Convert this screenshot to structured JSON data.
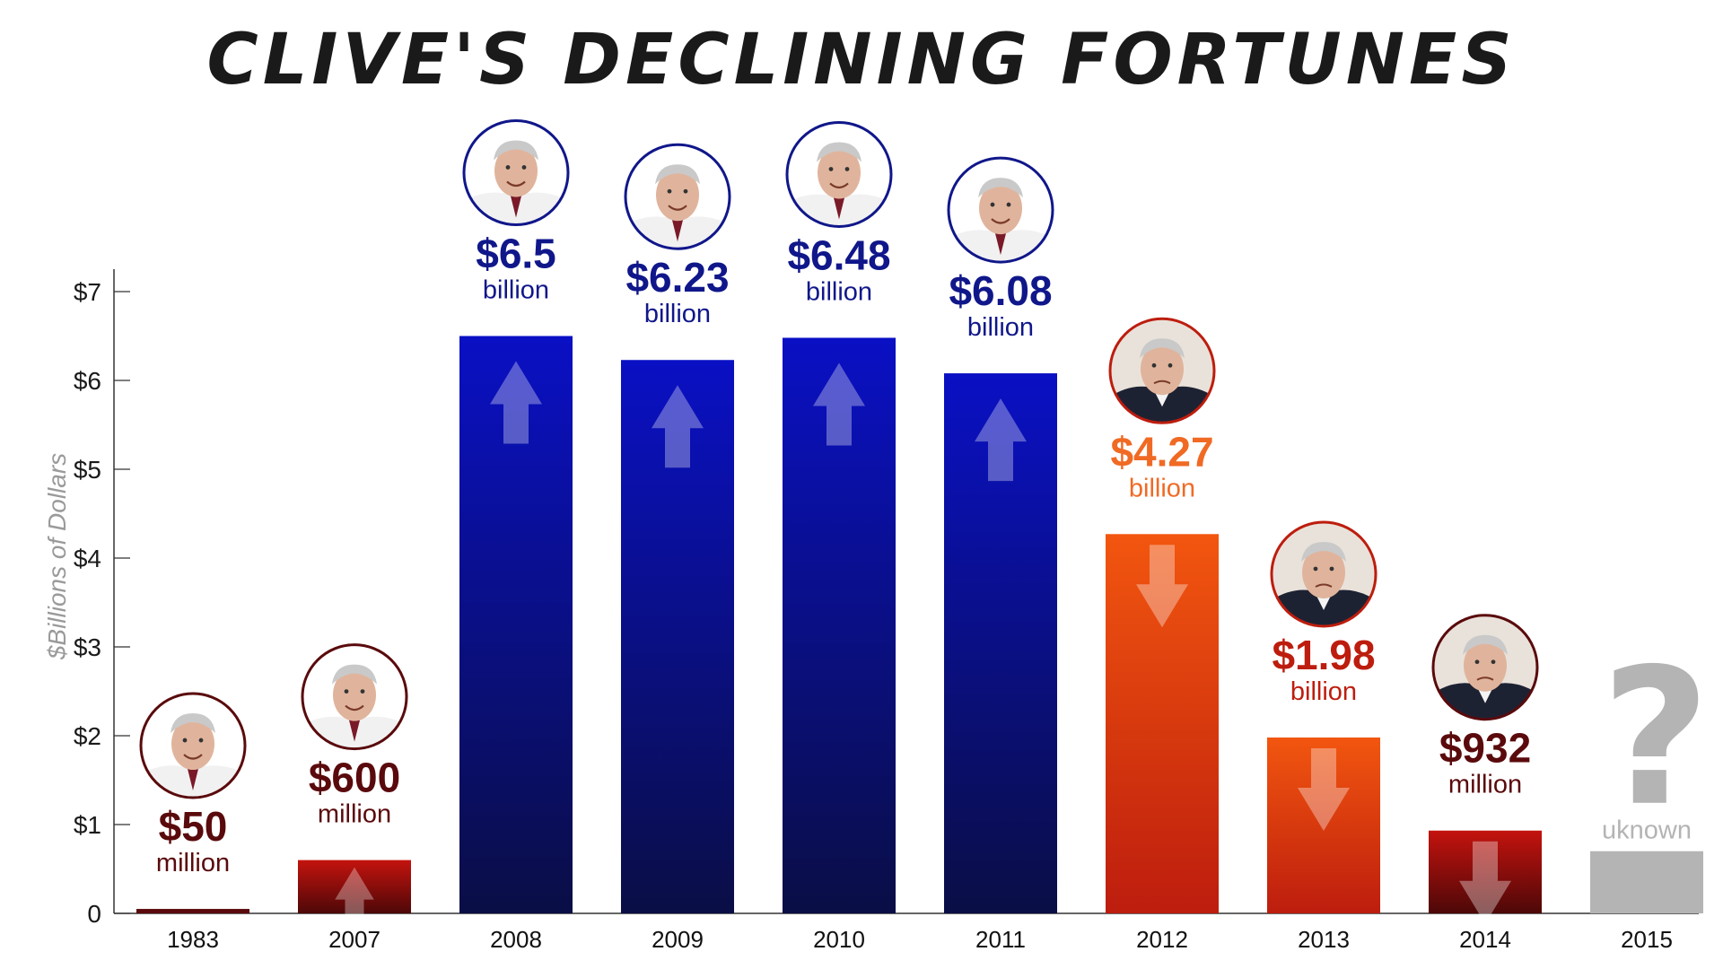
{
  "title": "CLIVE'S DECLINING FORTUNES",
  "colors": {
    "blue_top": "#0a10c4",
    "blue_bottom": "#0a0e45",
    "orange_top": "#f2560f",
    "orange_bottom": "#bd1d0e",
    "red_top": "#c4130e",
    "red_bottom": "#4d0808",
    "dark_red": "#5a0a0c",
    "navy": "#10178a",
    "orange_label": "#f06a24",
    "grey": "#b4b4b4",
    "axis": "#333333"
  },
  "chart_data": {
    "type": "bar",
    "title": "CLIVE'S DECLINING FORTUNES",
    "xlabel": "",
    "ylabel": "$Billions of Dollars",
    "ylim": [
      0,
      7.3
    ],
    "yticks": [
      0,
      1,
      2,
      3,
      4,
      5,
      6,
      7
    ],
    "ytick_labels": [
      "0",
      "$1",
      "$2",
      "$3",
      "$4",
      "$5",
      "$6",
      "$7"
    ],
    "categories": [
      "1983",
      "2007",
      "2008",
      "2009",
      "2010",
      "2011",
      "2012",
      "2013",
      "2014",
      "2015"
    ],
    "values": [
      0.05,
      0.6,
      6.5,
      6.23,
      6.48,
      6.08,
      4.27,
      1.98,
      0.932,
      null
    ],
    "value_labels": [
      {
        "amount": "$50",
        "unit": "million",
        "color": "dark_red",
        "arrow": "none",
        "face": "happy"
      },
      {
        "amount": "$600",
        "unit": "million",
        "color": "dark_red",
        "arrow": "up",
        "face": "happy"
      },
      {
        "amount": "$6.5",
        "unit": "billion",
        "color": "navy",
        "arrow": "up",
        "face": "happy"
      },
      {
        "amount": "$6.23",
        "unit": "billion",
        "color": "navy",
        "arrow": "up",
        "face": "happy"
      },
      {
        "amount": "$6.48",
        "unit": "billion",
        "color": "navy",
        "arrow": "up",
        "face": "happy"
      },
      {
        "amount": "$6.08",
        "unit": "billion",
        "color": "navy",
        "arrow": "up",
        "face": "happy"
      },
      {
        "amount": "$4.27",
        "unit": "billion",
        "color": "orange_label",
        "arrow": "down",
        "face": "sad"
      },
      {
        "amount": "$1.98",
        "unit": "billion",
        "color": "orange_bottom",
        "arrow": "down",
        "face": "sad"
      },
      {
        "amount": "$932",
        "unit": "million",
        "color": "dark_red",
        "arrow": "down",
        "face": "sad"
      },
      {
        "amount": "?",
        "unit": "uknown",
        "color": "grey",
        "arrow": "none",
        "face": "none"
      }
    ],
    "bar_styles": [
      "red",
      "red",
      "blue",
      "blue",
      "blue",
      "blue",
      "orange",
      "orange",
      "red",
      "grey"
    ],
    "unknown_bar_value": 0.7,
    "grid": false,
    "legend": "none"
  }
}
